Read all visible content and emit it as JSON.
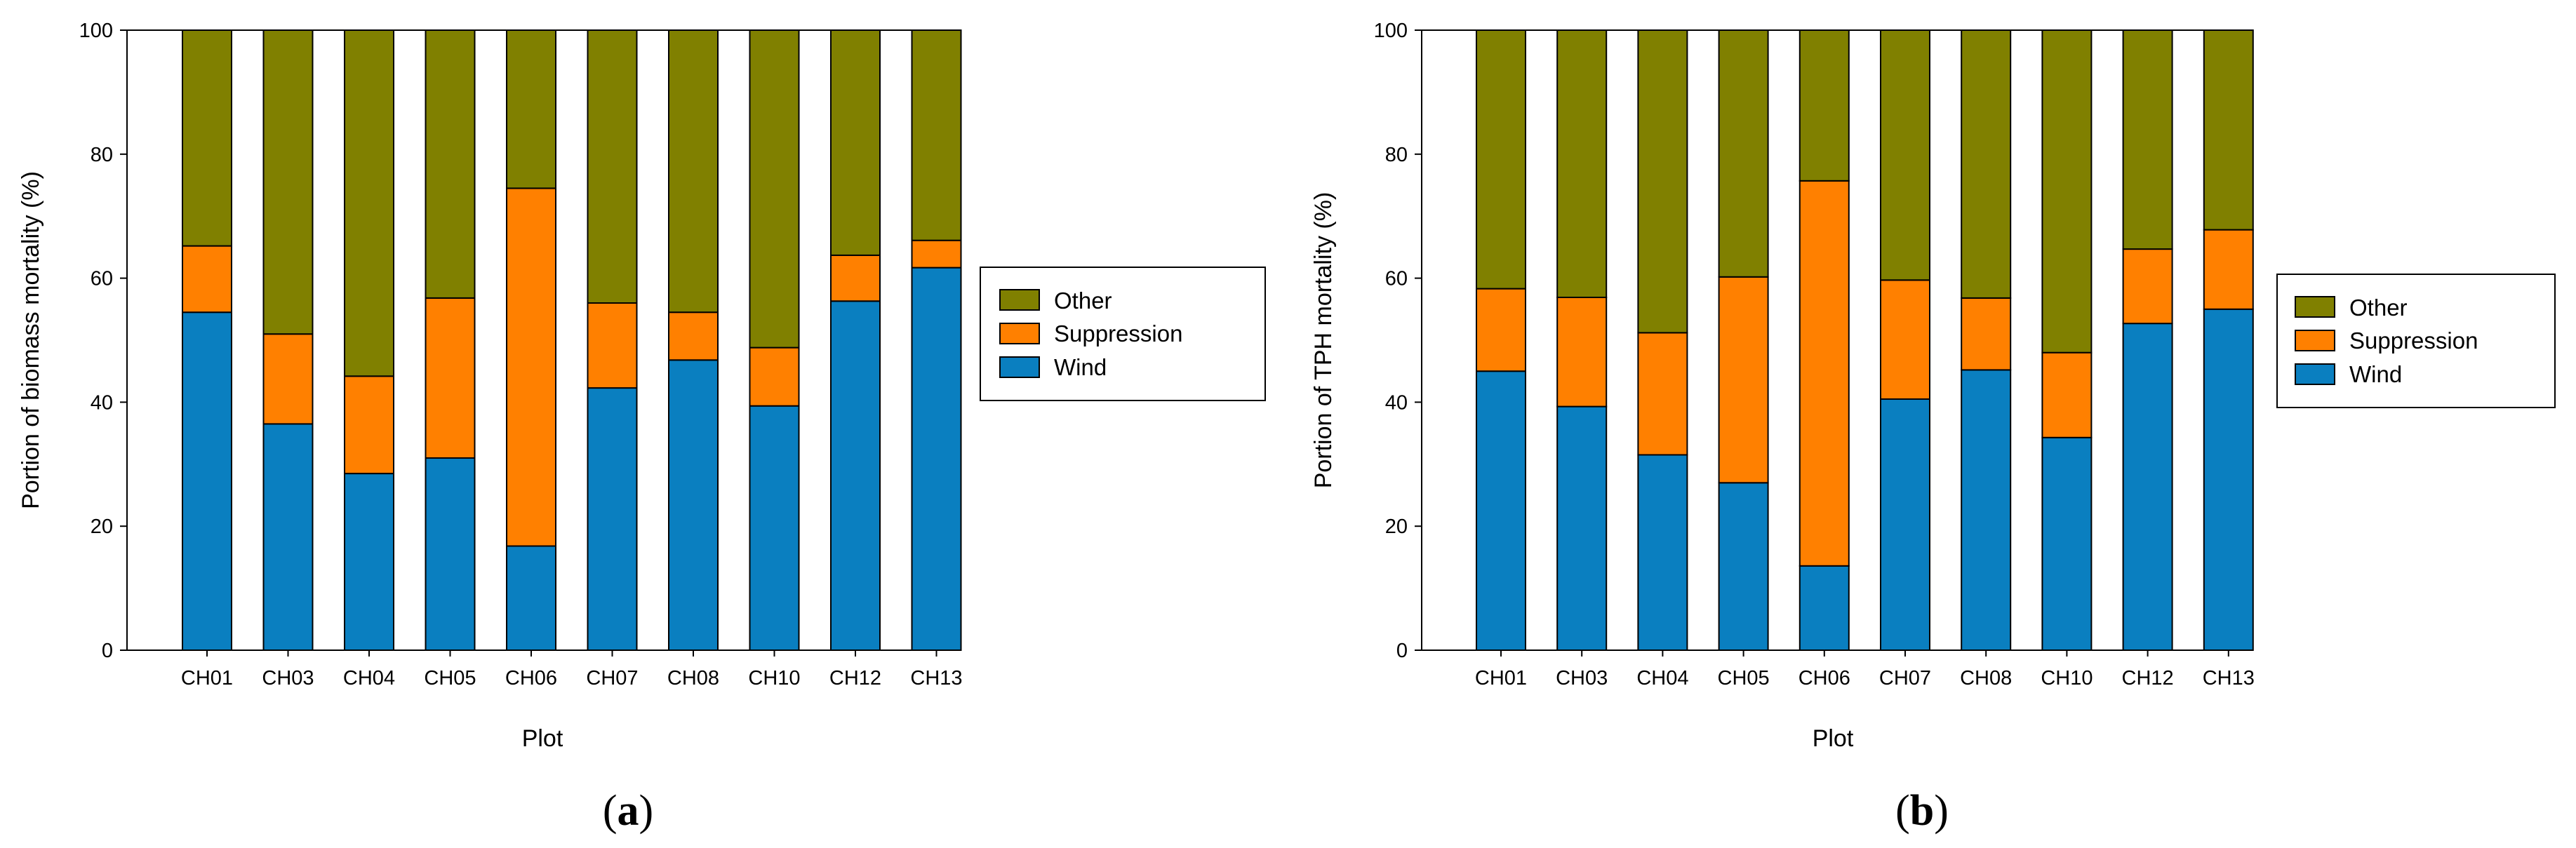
{
  "colors": {
    "wind": "#0a7fc0",
    "suppression": "#ff8000",
    "other": "#808000",
    "outline": "#000000"
  },
  "chart_data": [
    {
      "type": "bar",
      "stacked": true,
      "panel": "a",
      "categories": [
        "CH01",
        "CH03",
        "CH04",
        "CH05",
        "CH06",
        "CH07",
        "CH08",
        "CH10",
        "CH12",
        "CH13"
      ],
      "series": [
        {
          "name": "Wind",
          "values": [
            54.5,
            36.5,
            28.5,
            31.0,
            16.8,
            42.3,
            46.8,
            39.4,
            56.3,
            61.7
          ]
        },
        {
          "name": "Suppression",
          "values": [
            10.7,
            14.5,
            15.7,
            25.8,
            57.7,
            13.7,
            7.7,
            9.4,
            7.4,
            4.4
          ]
        },
        {
          "name": "Other",
          "values": [
            34.8,
            49.0,
            55.8,
            43.2,
            25.5,
            44.0,
            45.5,
            51.2,
            36.3,
            33.9
          ]
        }
      ],
      "title": "",
      "xlabel": "Plot",
      "ylabel": "Portion of biomass mortality (%)",
      "ylim": [
        0,
        100
      ],
      "yticks": [
        "0",
        "20",
        "40",
        "60",
        "80",
        "100"
      ],
      "legend": [
        "Other",
        "Suppression",
        "Wind"
      ],
      "legend_position": "right"
    },
    {
      "type": "bar",
      "stacked": true,
      "panel": "b",
      "categories": [
        "CH01",
        "CH03",
        "CH04",
        "CH05",
        "CH06",
        "CH07",
        "CH08",
        "CH10",
        "CH12",
        "CH13"
      ],
      "series": [
        {
          "name": "Wind",
          "values": [
            45.0,
            39.3,
            31.5,
            27.0,
            13.6,
            40.5,
            45.2,
            34.3,
            52.7,
            55.0
          ]
        },
        {
          "name": "Suppression",
          "values": [
            13.3,
            17.6,
            19.7,
            33.2,
            62.1,
            19.2,
            11.6,
            13.7,
            12.0,
            12.8
          ]
        },
        {
          "name": "Other",
          "values": [
            41.7,
            43.1,
            48.8,
            39.8,
            24.3,
            40.3,
            43.2,
            52.0,
            35.3,
            32.2
          ]
        }
      ],
      "title": "",
      "xlabel": "Plot",
      "ylabel": "Portion of TPH mortality (%)",
      "ylim": [
        0,
        100
      ],
      "yticks": [
        "0",
        "20",
        "40",
        "60",
        "80",
        "100"
      ],
      "legend": [
        "Other",
        "Suppression",
        "Wind"
      ],
      "legend_position": "right"
    }
  ],
  "panels": {
    "a": {
      "label_open": "(",
      "label_letter": "a",
      "label_close": ")"
    },
    "b": {
      "label_open": "(",
      "label_letter": "b",
      "label_close": ")"
    }
  }
}
